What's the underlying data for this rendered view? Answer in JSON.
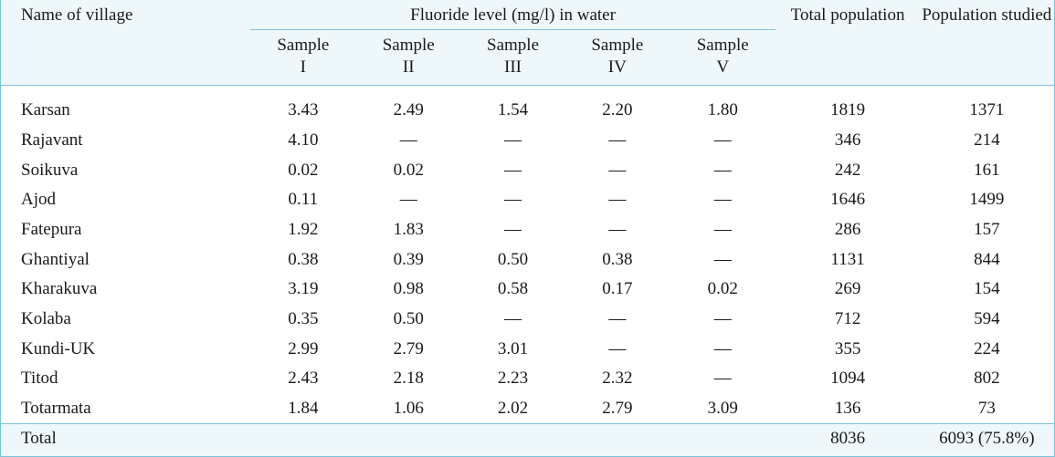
{
  "table": {
    "headers": {
      "name": "Name of village",
      "group": "Fluoride level (mg/l) in water",
      "total_population": "Total population",
      "population_studied": "Population studied",
      "samples": [
        {
          "line1": "Sample",
          "line2": "I"
        },
        {
          "line1": "Sample",
          "line2": "II"
        },
        {
          "line1": "Sample",
          "line2": "III"
        },
        {
          "line1": "Sample",
          "line2": "IV"
        },
        {
          "line1": "Sample",
          "line2": "V"
        }
      ]
    },
    "rows": [
      {
        "name": "Karsan",
        "s": [
          "3.43",
          "2.49",
          "1.54",
          "2.20",
          "1.80"
        ],
        "total": "1819",
        "studied": "1371"
      },
      {
        "name": "Rajavant",
        "s": [
          "4.10",
          "—",
          "—",
          "—",
          "—"
        ],
        "total": "346",
        "studied": "214"
      },
      {
        "name": "Soikuva",
        "s": [
          "0.02",
          "0.02",
          "—",
          "—",
          "—"
        ],
        "total": "242",
        "studied": "161"
      },
      {
        "name": "Ajod",
        "s": [
          "0.11",
          "—",
          "—",
          "—",
          "—"
        ],
        "total": "1646",
        "studied": "1499"
      },
      {
        "name": "Fatepura",
        "s": [
          "1.92",
          "1.83",
          "—",
          "—",
          "—"
        ],
        "total": "286",
        "studied": "157"
      },
      {
        "name": "Ghantiyal",
        "s": [
          "0.38",
          "0.39",
          "0.50",
          "0.38",
          "—"
        ],
        "total": "1131",
        "studied": "844"
      },
      {
        "name": "Kharakuva",
        "s": [
          "3.19",
          "0.98",
          "0.58",
          "0.17",
          "0.02"
        ],
        "total": "269",
        "studied": "154"
      },
      {
        "name": "Kolaba",
        "s": [
          "0.35",
          "0.50",
          "—",
          "—",
          "—"
        ],
        "total": "712",
        "studied": "594"
      },
      {
        "name": "Kundi-UK",
        "s": [
          "2.99",
          "2.79",
          "3.01",
          "—",
          "—"
        ],
        "total": "355",
        "studied": "224"
      },
      {
        "name": "Titod",
        "s": [
          "2.43",
          "2.18",
          "2.23",
          "2.32",
          "—"
        ],
        "total": "1094",
        "studied": "802"
      },
      {
        "name": "Totarmata",
        "s": [
          "1.84",
          "1.06",
          "2.02",
          "2.79",
          "3.09"
        ],
        "total": "136",
        "studied": "73"
      }
    ],
    "total_row": {
      "label": "Total",
      "total": "8036",
      "studied": "6093 (75.8%)"
    },
    "colors": {
      "header_bg": "#eef8fb",
      "rule": "#7fc3d6",
      "body_bg": "#ffffff"
    }
  }
}
